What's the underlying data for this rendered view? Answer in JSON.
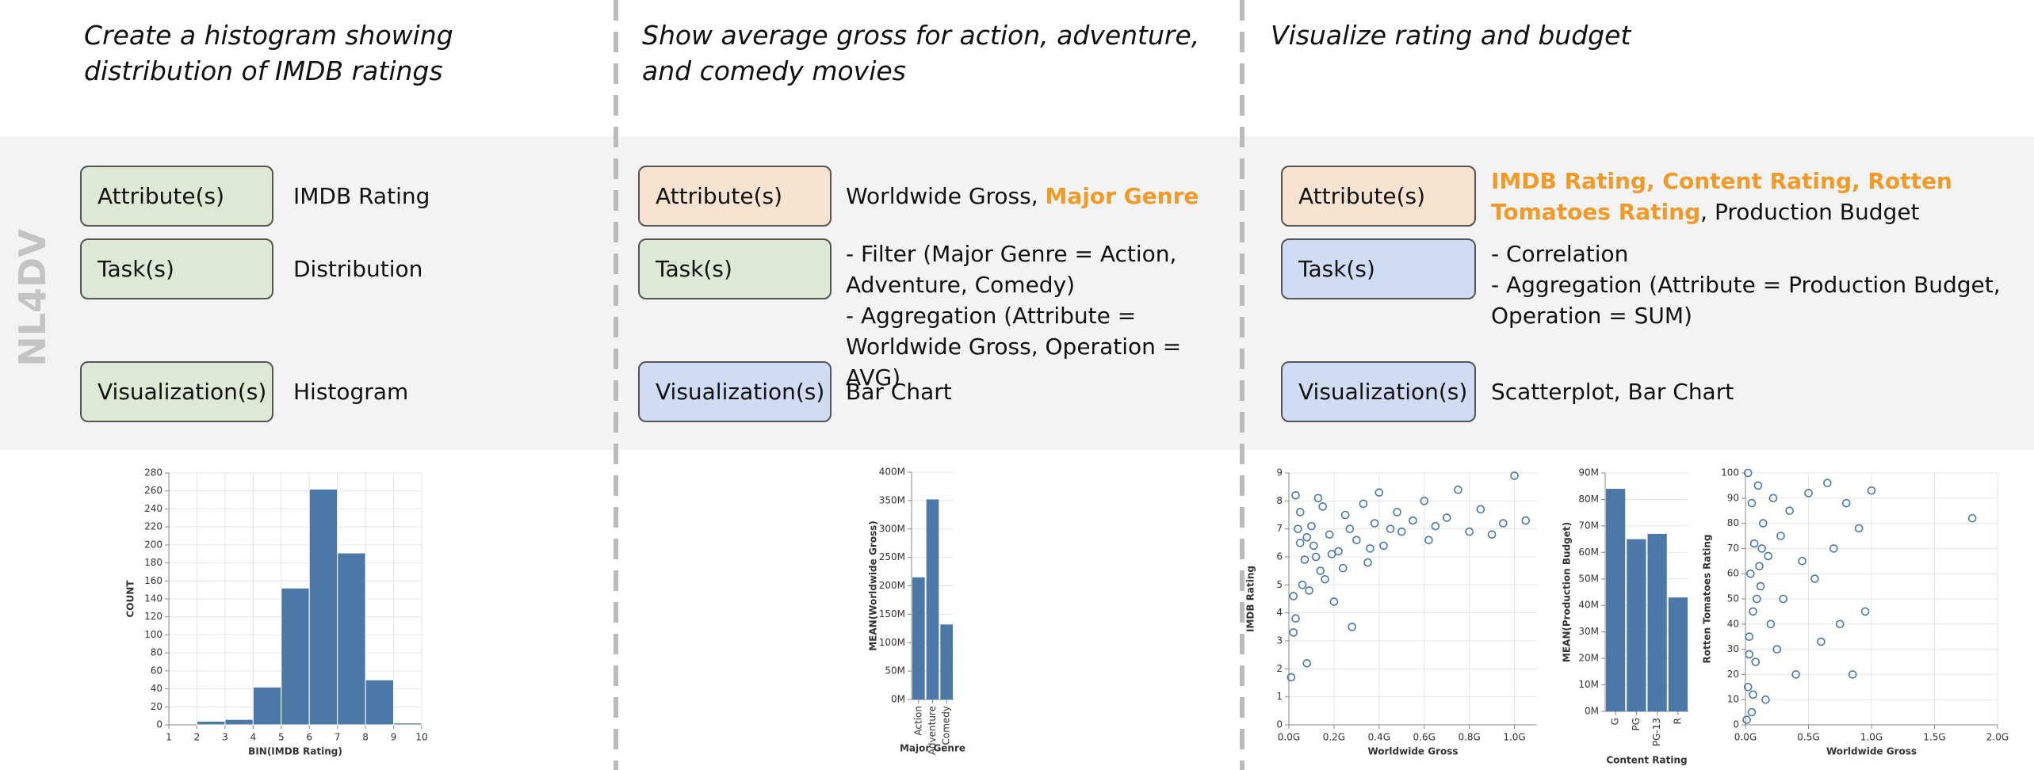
{
  "side_label": "NL4DV",
  "panels": [
    {
      "query": "Create a histogram showing distribution of IMDB ratings",
      "rows": [
        {
          "label": "Attribute(s)",
          "color": "#dde9d5",
          "value": [
            [
              {
                "text": "IMDB Rating",
                "highlight": false
              }
            ]
          ]
        },
        {
          "label": "Task(s)",
          "color": "#dde9d5",
          "value": [
            [
              {
                "text": "Distribution",
                "highlight": false
              }
            ]
          ]
        },
        {
          "label": "Visualization(s)",
          "color": "#dde9d5",
          "value": [
            [
              {
                "text": "Histogram",
                "highlight": false
              }
            ]
          ]
        }
      ]
    },
    {
      "query": "Show average gross for action, adventure, and comedy movies",
      "rows": [
        {
          "label": "Attribute(s)",
          "color": "#f8e3d0",
          "value": [
            [
              {
                "text": "Worldwide Gross, ",
                "highlight": false
              },
              {
                "text": "Major Genre",
                "highlight": true
              }
            ]
          ]
        },
        {
          "label": "Task(s)",
          "color": "#dde9d5",
          "value": [
            [
              {
                "text": "- Filter (Major Genre = Action, Adventure, Comedy)",
                "highlight": false
              }
            ],
            [
              {
                "text": "- Aggregation (Attribute = Worldwide Gross, Operation = AVG)",
                "highlight": false
              }
            ]
          ]
        },
        {
          "label": "Visualization(s)",
          "color": "#cfdcf3",
          "value": [
            [
              {
                "text": "Bar Chart",
                "highlight": false
              }
            ]
          ]
        }
      ]
    },
    {
      "query": "Visualize rating and budget",
      "rows": [
        {
          "label": "Attribute(s)",
          "color": "#f8e3d0",
          "value": [
            [
              {
                "text": "IMDB Rating, Content Rating, Rotten Tomatoes Rating",
                "highlight": true
              },
              {
                "text": ", Production Budget",
                "highlight": false
              }
            ]
          ]
        },
        {
          "label": "Task(s)",
          "color": "#cfdcf3",
          "value": [
            [
              {
                "text": "- Correlation",
                "highlight": false
              }
            ],
            [
              {
                "text": "- Aggregation (Attribute = Production Budget, Operation = SUM)",
                "highlight": false
              }
            ]
          ]
        },
        {
          "label": "Visualization(s)",
          "color": "#cfdcf3",
          "value": [
            [
              {
                "text": "Scatterplot, Bar Chart",
                "highlight": false
              }
            ]
          ]
        }
      ]
    }
  ],
  "chart_data": [
    {
      "type": "histogram",
      "x_label": "BIN(IMDB Rating)",
      "y_label": "COUNT",
      "color": "#4c78a8",
      "grid": true,
      "bins": [
        1,
        2,
        3,
        4,
        5,
        6,
        7,
        8,
        9,
        10
      ],
      "values": [
        0,
        4,
        6,
        42,
        152,
        262,
        191,
        50,
        2
      ],
      "xlim": [
        1,
        10
      ],
      "xticks": [
        1,
        2,
        3,
        4,
        5,
        6,
        7,
        8,
        9,
        10
      ],
      "ylim": [
        0,
        280
      ],
      "yticks": [
        0,
        20,
        40,
        60,
        80,
        100,
        120,
        140,
        160,
        180,
        200,
        220,
        240,
        260,
        280
      ]
    },
    {
      "type": "bar",
      "x_label": "Major Genre",
      "y_label": "MEAN(Worldwide Gross)",
      "color": "#4c78a8",
      "grid": true,
      "categories": [
        "Action",
        "Adventure",
        "Comedy"
      ],
      "values": [
        215,
        352,
        132
      ],
      "ylim": [
        0,
        400
      ],
      "yticks": [
        {
          "value": 0,
          "label": "0M"
        },
        {
          "value": 50,
          "label": "50M"
        },
        {
          "value": 100,
          "label": "100M"
        },
        {
          "value": 150,
          "label": "150M"
        },
        {
          "value": 200,
          "label": "200M"
        },
        {
          "value": 250,
          "label": "250M"
        },
        {
          "value": 300,
          "label": "300M"
        },
        {
          "value": 350,
          "label": "350M"
        },
        {
          "value": 400,
          "label": "400M"
        }
      ]
    },
    {
      "type": "scatter",
      "x_label": "Worldwide Gross",
      "y_label": "IMDB Rating",
      "color": "#4c78a8",
      "grid": true,
      "x": [
        0.01,
        0.02,
        0.03,
        0.05,
        0.06,
        0.08,
        0.1,
        0.12,
        0.14,
        0.15,
        0.18,
        0.2,
        0.22,
        0.25,
        0.28,
        0.3,
        0.33,
        0.35,
        0.38,
        0.4,
        0.42,
        0.45,
        0.48,
        0.5,
        0.55,
        0.6,
        0.62,
        0.7,
        0.75,
        0.8,
        0.85,
        0.9,
        0.95,
        1.0,
        1.05,
        0.04,
        0.07,
        0.09,
        0.11,
        0.16,
        0.02,
        0.05,
        0.13,
        0.19,
        0.24,
        0.03,
        0.08,
        0.27,
        0.36,
        0.65
      ],
      "values": [
        1.7,
        3.3,
        8.2,
        6.5,
        5.0,
        2.2,
        7.1,
        6.0,
        5.5,
        7.8,
        6.8,
        4.4,
        6.2,
        7.5,
        3.5,
        6.6,
        7.9,
        5.8,
        7.2,
        8.3,
        6.4,
        7.0,
        7.6,
        6.9,
        7.3,
        8.0,
        6.6,
        7.4,
        8.4,
        6.9,
        7.7,
        6.8,
        7.2,
        8.9,
        7.3,
        7.0,
        5.9,
        4.8,
        6.4,
        5.2,
        4.6,
        7.6,
        8.1,
        6.1,
        5.6,
        3.8,
        6.7,
        7.0,
        6.3,
        7.1
      ],
      "xlim": [
        0,
        1.1
      ],
      "xticks": [
        {
          "value": 0,
          "label": "0.0G"
        },
        {
          "value": 0.2,
          "label": "0.2G"
        },
        {
          "value": 0.4,
          "label": "0.4G"
        },
        {
          "value": 0.6,
          "label": "0.6G"
        },
        {
          "value": 0.8,
          "label": "0.8G"
        },
        {
          "value": 1.0,
          "label": "1.0G"
        }
      ],
      "ylim": [
        0,
        9
      ],
      "yticks": [
        0,
        1,
        2,
        3,
        4,
        5,
        6,
        7,
        8,
        9
      ]
    },
    {
      "type": "bar",
      "x_label": "Content Rating",
      "y_label": "MEAN(Production Budget)",
      "color": "#4c78a8",
      "grid": true,
      "categories": [
        "G",
        "PG",
        "PG-13",
        "R"
      ],
      "values": [
        84,
        65,
        67,
        43
      ],
      "ylim": [
        0,
        90
      ],
      "yticks": [
        {
          "value": 0,
          "label": "0M"
        },
        {
          "value": 10,
          "label": "10M"
        },
        {
          "value": 20,
          "label": "20M"
        },
        {
          "value": 30,
          "label": "30M"
        },
        {
          "value": 40,
          "label": "40M"
        },
        {
          "value": 50,
          "label": "50M"
        },
        {
          "value": 60,
          "label": "60M"
        },
        {
          "value": 70,
          "label": "70M"
        },
        {
          "value": 80,
          "label": "80M"
        },
        {
          "value": 90,
          "label": "90M"
        }
      ]
    },
    {
      "type": "scatter",
      "x_label": "Worldwide Gross",
      "y_label": "Rotten Tomatoes Rating",
      "color": "#4c78a8",
      "grid": true,
      "x": [
        0.01,
        0.02,
        0.03,
        0.04,
        0.05,
        0.06,
        0.07,
        0.08,
        0.1,
        0.12,
        0.14,
        0.16,
        0.18,
        0.2,
        0.22,
        0.25,
        0.28,
        0.3,
        0.35,
        0.4,
        0.45,
        0.5,
        0.55,
        0.6,
        0.65,
        0.7,
        0.75,
        0.8,
        0.85,
        0.9,
        0.95,
        1.0,
        1.8,
        0.02,
        0.05,
        0.09,
        0.13,
        0.03,
        0.06,
        0.11
      ],
      "values": [
        2,
        15,
        35,
        60,
        88,
        45,
        72,
        25,
        95,
        55,
        80,
        10,
        67,
        40,
        90,
        30,
        75,
        50,
        85,
        20,
        65,
        92,
        58,
        33,
        96,
        70,
        40,
        88,
        20,
        78,
        45,
        93,
        82,
        100,
        5,
        50,
        70,
        28,
        12,
        63
      ],
      "xlim": [
        0,
        2
      ],
      "xticks": [
        {
          "value": 0,
          "label": "0.0G"
        },
        {
          "value": 0.5,
          "label": "0.5G"
        },
        {
          "value": 1,
          "label": "1.0G"
        },
        {
          "value": 1.5,
          "label": "1.5G"
        },
        {
          "value": 2,
          "label": "2.0G"
        }
      ],
      "ylim": [
        0,
        100
      ],
      "yticks": [
        0,
        10,
        20,
        30,
        40,
        50,
        60,
        70,
        80,
        90,
        100
      ]
    }
  ]
}
